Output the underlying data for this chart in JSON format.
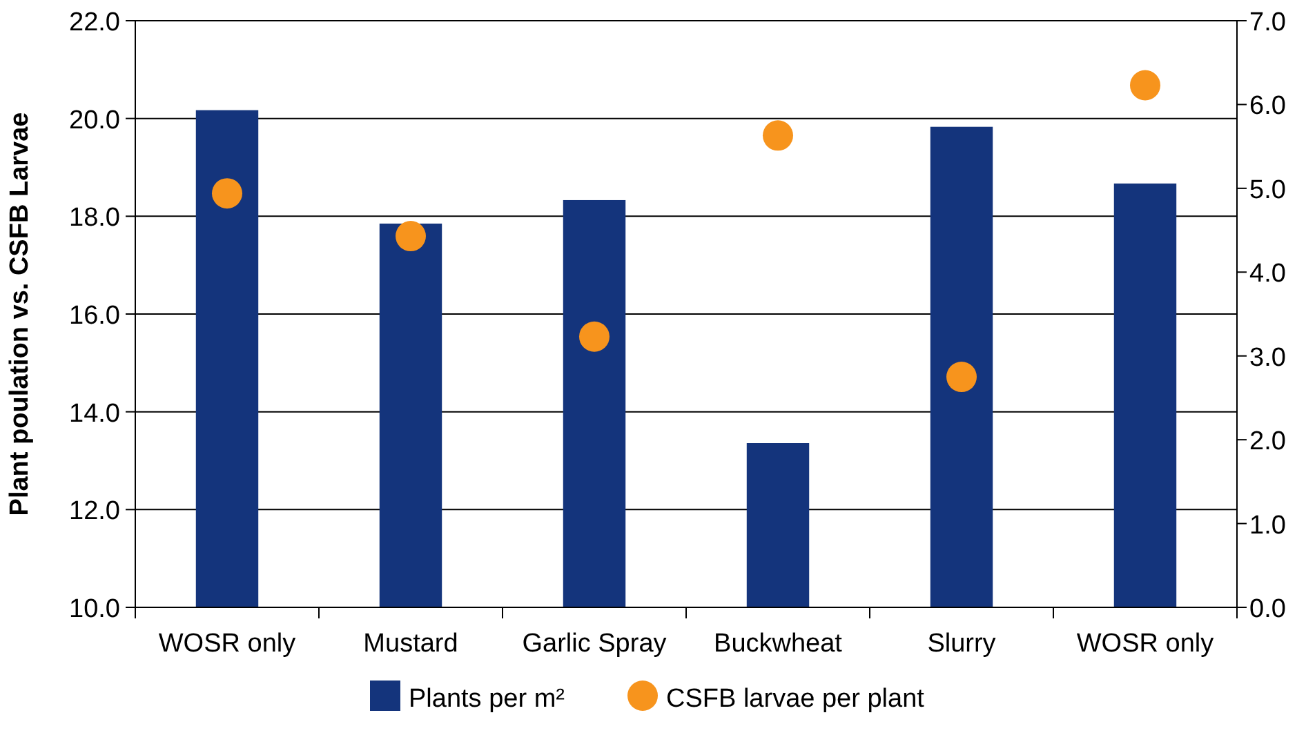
{
  "chart_data": {
    "type": "bar",
    "ylabel": "Plant poulation vs. CSFB Larvae",
    "categories": [
      "WOSR only",
      "Mustard",
      "Garlic Spray",
      "Buckwheat",
      "Slurry",
      "WOSR only"
    ],
    "series": [
      {
        "name": "Plants per m²",
        "color": "#14347c",
        "values": [
          20.17,
          17.85,
          18.33,
          13.36,
          19.83,
          18.67
        ]
      },
      {
        "name": "CSFB larvae per plant",
        "type": "scatter",
        "axis": "y2",
        "color": "#f7941d",
        "marker": "circle",
        "values": [
          4.94,
          4.43,
          3.23,
          5.63,
          2.75,
          6.23
        ]
      }
    ],
    "ylim": [
      10,
      22
    ],
    "yticks": [
      {
        "value": 10,
        "label": "10.0"
      },
      {
        "value": 12,
        "label": "12.0"
      },
      {
        "value": 14,
        "label": "14.0"
      },
      {
        "value": 16,
        "label": "16.0"
      },
      {
        "value": 18,
        "label": "18.0"
      },
      {
        "value": 20,
        "label": "20.0"
      },
      {
        "value": 22,
        "label": "22.0"
      }
    ],
    "y2lim": [
      0,
      7
    ],
    "y2ticks": [
      {
        "value": 0,
        "label": "0.0"
      },
      {
        "value": 1,
        "label": "1.0"
      },
      {
        "value": 2,
        "label": "2.0"
      },
      {
        "value": 3,
        "label": "3.0"
      },
      {
        "value": 4,
        "label": "4.0"
      },
      {
        "value": 5,
        "label": "5.0"
      },
      {
        "value": 6,
        "label": "6.0"
      },
      {
        "value": 7,
        "label": "7.0"
      }
    ],
    "grid": "y",
    "legend": "bottom"
  }
}
